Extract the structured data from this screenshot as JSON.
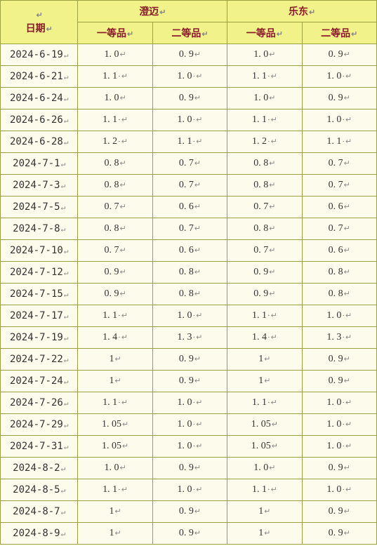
{
  "table": {
    "header": {
      "date_label": "日期",
      "region_a": "澄迈",
      "region_b": "乐东",
      "grade1": "一等品",
      "grade2": "二等品"
    },
    "mark_glyph": "↵",
    "dot_glyph": "·",
    "colors": {
      "header_bg": "#f2f28a",
      "header_text": "#8a1a2a",
      "cell_bg": "#fdfcec",
      "border": "#9aa040"
    },
    "rows": [
      {
        "date": "2024-6-19",
        "a1": "1. 0",
        "a1_dot": false,
        "a2": "0. 9",
        "a2_dot": false,
        "b1": "1. 0",
        "b1_dot": false,
        "b2": "0. 9",
        "b2_dot": false
      },
      {
        "date": "2024-6-21",
        "a1": "1. 1",
        "a1_dot": true,
        "a2": "1. 0",
        "a2_dot": true,
        "b1": "1. 1",
        "b1_dot": true,
        "b2": "1. 0",
        "b2_dot": true
      },
      {
        "date": "2024-6-24",
        "a1": "1. 0",
        "a1_dot": false,
        "a2": "0. 9",
        "a2_dot": false,
        "b1": "1. 0",
        "b1_dot": false,
        "b2": "0. 9",
        "b2_dot": false
      },
      {
        "date": "2024-6-26",
        "a1": "1. 1",
        "a1_dot": true,
        "a2": "1. 0",
        "a2_dot": true,
        "b1": "1. 1",
        "b1_dot": true,
        "b2": "1. 0",
        "b2_dot": true
      },
      {
        "date": "2024-6-28",
        "a1": "1. 2",
        "a1_dot": true,
        "a2": "1. 1",
        "a2_dot": true,
        "b1": "1. 2",
        "b1_dot": true,
        "b2": "1. 1",
        "b2_dot": true
      },
      {
        "date": "2024-7-1",
        "a1": "0. 8",
        "a1_dot": false,
        "a2": "0. 7",
        "a2_dot": false,
        "b1": "0. 8",
        "b1_dot": false,
        "b2": "0. 7",
        "b2_dot": false
      },
      {
        "date": "2024-7-3",
        "a1": "0. 8",
        "a1_dot": false,
        "a2": "0. 7",
        "a2_dot": false,
        "b1": "0. 8",
        "b1_dot": false,
        "b2": "0. 7",
        "b2_dot": false
      },
      {
        "date": "2024-7-5",
        "a1": "0. 7",
        "a1_dot": false,
        "a2": "0. 6",
        "a2_dot": false,
        "b1": "0. 7",
        "b1_dot": false,
        "b2": "0. 6",
        "b2_dot": false
      },
      {
        "date": "2024-7-8",
        "a1": "0. 8",
        "a1_dot": false,
        "a2": "0. 7",
        "a2_dot": false,
        "b1": "0. 8",
        "b1_dot": false,
        "b2": "0. 7",
        "b2_dot": false
      },
      {
        "date": "2024-7-10",
        "a1": "0. 7",
        "a1_dot": false,
        "a2": "0. 6",
        "a2_dot": false,
        "b1": "0. 7",
        "b1_dot": false,
        "b2": "0. 6",
        "b2_dot": false
      },
      {
        "date": "2024-7-12",
        "a1": "0. 9",
        "a1_dot": false,
        "a2": "0. 8",
        "a2_dot": false,
        "b1": "0. 9",
        "b1_dot": false,
        "b2": "0. 8",
        "b2_dot": false
      },
      {
        "date": "2024-7-15",
        "a1": "0. 9",
        "a1_dot": false,
        "a2": "0. 8",
        "a2_dot": false,
        "b1": "0. 9",
        "b1_dot": false,
        "b2": "0. 8",
        "b2_dot": false
      },
      {
        "date": "2024-7-17",
        "a1": "1. 1",
        "a1_dot": true,
        "a2": "1. 0",
        "a2_dot": true,
        "b1": "1. 1",
        "b1_dot": true,
        "b2": "1. 0",
        "b2_dot": true
      },
      {
        "date": "2024-7-19",
        "a1": "1. 4",
        "a1_dot": true,
        "a2": "1. 3",
        "a2_dot": true,
        "b1": "1. 4",
        "b1_dot": true,
        "b2": "1. 3",
        "b2_dot": true
      },
      {
        "date": "2024-7-22",
        "a1": "1",
        "a1_dot": false,
        "a2": "0. 9",
        "a2_dot": false,
        "b1": "1",
        "b1_dot": false,
        "b2": "0. 9",
        "b2_dot": false
      },
      {
        "date": "2024-7-24",
        "a1": "1",
        "a1_dot": false,
        "a2": "0. 9",
        "a2_dot": false,
        "b1": "1",
        "b1_dot": false,
        "b2": "0. 9",
        "b2_dot": false
      },
      {
        "date": "2024-7-26",
        "a1": "1. 1",
        "a1_dot": true,
        "a2": "1. 0",
        "a2_dot": true,
        "b1": "1. 1",
        "b1_dot": true,
        "b2": "1. 0",
        "b2_dot": true
      },
      {
        "date": "2024-7-29",
        "a1": "1. 05",
        "a1_dot": false,
        "a2": "1. 0",
        "a2_dot": true,
        "b1": "1. 05",
        "b1_dot": false,
        "b2": "1. 0",
        "b2_dot": true
      },
      {
        "date": "2024-7-31",
        "a1": "1. 05",
        "a1_dot": false,
        "a2": "1. 0",
        "a2_dot": true,
        "b1": "1. 05",
        "b1_dot": false,
        "b2": "1. 0",
        "b2_dot": true
      },
      {
        "date": "2024-8-2",
        "a1": "1. 0",
        "a1_dot": false,
        "a2": "0. 9",
        "a2_dot": false,
        "b1": "1. 0",
        "b1_dot": false,
        "b2": "0. 9",
        "b2_dot": false
      },
      {
        "date": "2024-8-5",
        "a1": "1. 1",
        "a1_dot": true,
        "a2": "1. 0",
        "a2_dot": true,
        "b1": "1. 1",
        "b1_dot": true,
        "b2": "1. 0",
        "b2_dot": true
      },
      {
        "date": "2024-8-7",
        "a1": "1",
        "a1_dot": false,
        "a2": "0. 9",
        "a2_dot": false,
        "b1": "1",
        "b1_dot": false,
        "b2": "0. 9",
        "b2_dot": false
      },
      {
        "date": "2024-8-9",
        "a1": "1",
        "a1_dot": false,
        "a2": "0. 9",
        "a2_dot": false,
        "b1": "1",
        "b1_dot": false,
        "b2": "0. 9",
        "b2_dot": false
      }
    ]
  }
}
